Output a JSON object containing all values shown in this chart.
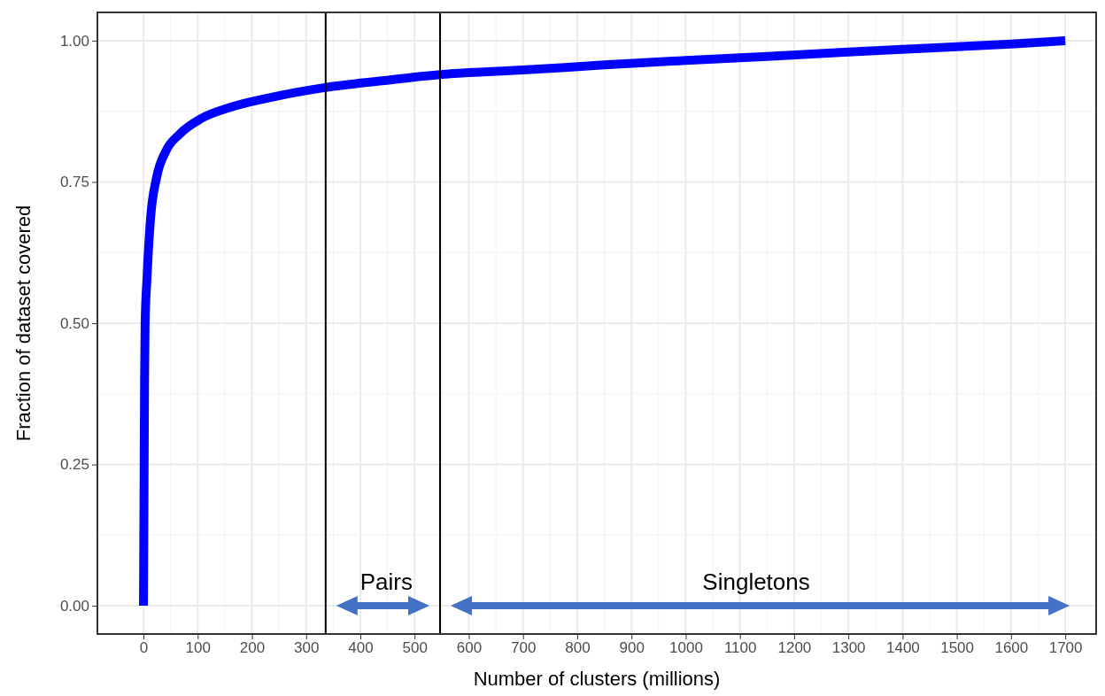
{
  "chart_data": {
    "type": "line",
    "xlabel": "Number of clusters (millions)",
    "ylabel": "Fraction of dataset covered",
    "series": [
      {
        "color": "#0000ff",
        "x": [
          0,
          1,
          2,
          3,
          6.5,
          13,
          24,
          41,
          67,
          106,
          160,
          242,
          335,
          440,
          547,
          700,
          850,
          1000,
          1150,
          1300,
          1450,
          1600,
          1700
        ],
        "values": [
          0,
          0.2,
          0.4,
          0.5,
          0.58,
          0.685,
          0.757,
          0.804,
          0.835,
          0.862,
          0.882,
          0.901,
          0.917,
          0.929,
          0.94,
          0.948,
          0.957,
          0.965,
          0.972,
          0.98,
          0.987,
          0.994,
          1.0
        ]
      }
    ],
    "xlim": [
      -85,
      1757
    ],
    "ylim": [
      -0.05,
      1.05
    ],
    "xticks": [
      0,
      100,
      200,
      300,
      400,
      500,
      600,
      700,
      800,
      900,
      1000,
      1100,
      1200,
      1300,
      1400,
      1500,
      1600,
      1700
    ],
    "yticks": [
      {
        "value": 0,
        "label": "0.00"
      },
      {
        "value": 0.25,
        "label": "0.25"
      },
      {
        "value": 0.5,
        "label": "0.50"
      },
      {
        "value": 0.75,
        "label": "0.75"
      },
      {
        "value": 1,
        "label": "1.00"
      }
    ],
    "grid": true,
    "line_style": "solid",
    "marker": "none",
    "ref_lines": [
      {
        "axis": "x",
        "value": 336,
        "color": "#000000"
      },
      {
        "axis": "x",
        "value": 547,
        "color": "#000000"
      }
    ],
    "annotations": [
      "Pairs",
      "Singletons"
    ]
  }
}
